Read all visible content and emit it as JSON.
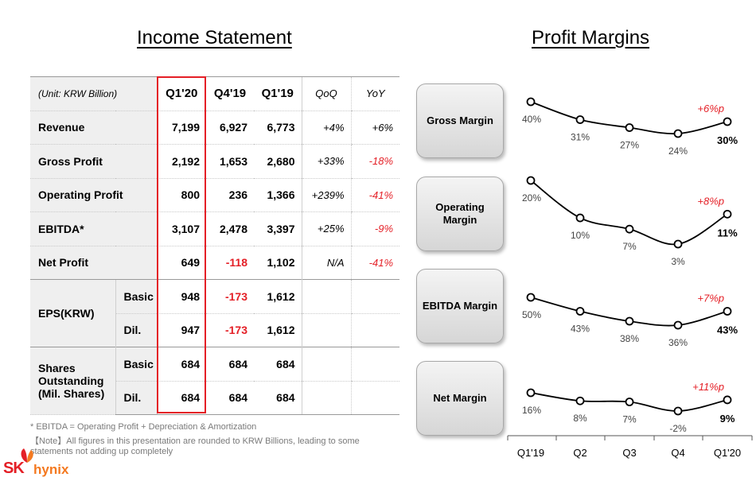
{
  "titles": {
    "income": "Income Statement",
    "margins": "Profit Margins"
  },
  "table": {
    "unit": "(Unit: KRW Billion)",
    "headers": [
      "Q1'20",
      "Q4'19",
      "Q1'19",
      "QoQ",
      "YoY"
    ],
    "rows": [
      {
        "label": "Revenue",
        "q120": "7,199",
        "q419": "6,927",
        "q119": "6,773",
        "qoq": "+4%",
        "yoy": "+6%"
      },
      {
        "label": "Gross Profit",
        "q120": "2,192",
        "q419": "1,653",
        "q119": "2,680",
        "qoq": "+33%",
        "yoy": "-18%"
      },
      {
        "label": "Operating Profit",
        "q120": "800",
        "q419": "236",
        "q119": "1,366",
        "qoq": "+239%",
        "yoy": "-41%"
      },
      {
        "label": "EBITDA*",
        "q120": "3,107",
        "q419": "2,478",
        "q119": "3,397",
        "qoq": "+25%",
        "yoy": "-9%"
      },
      {
        "label": "Net Profit",
        "q120": "649",
        "q419": "-118",
        "q119": "1,102",
        "qoq": "N/A",
        "yoy": "-41%"
      }
    ],
    "eps": {
      "label": "EPS(KRW)",
      "basic": {
        "label": "Basic",
        "q120": "948",
        "q419": "-173",
        "q119": "1,612"
      },
      "dil": {
        "label": "Dil.",
        "q120": "947",
        "q419": "-173",
        "q119": "1,612"
      }
    },
    "shares": {
      "label": "Shares Outstanding (Mil. Shares)",
      "basic": {
        "label": "Basic",
        "q120": "684",
        "q419": "684",
        "q119": "684"
      },
      "dil": {
        "label": "Dil.",
        "q120": "684",
        "q419": "684",
        "q119": "684"
      }
    }
  },
  "footnotes": {
    "ebitda": "* EBITDA = Operating Profit + Depreciation & Amortization",
    "note": "【Note】All figures in this presentation are rounded to KRW Billions, leading to some statements not adding up completely"
  },
  "logo": {
    "sk": "SK",
    "hynix": "hynix"
  },
  "colors": {
    "accent": "#e41f26",
    "negative": "#e41f26",
    "brand_orange": "#f47920"
  },
  "chart_data": {
    "type": "line",
    "categories": [
      "Q1'19",
      "Q2",
      "Q3",
      "Q4",
      "Q1'20"
    ],
    "series": [
      {
        "name": "Gross Margin",
        "values": [
          40,
          31,
          27,
          24,
          30
        ],
        "labels": [
          "40%",
          "31%",
          "27%",
          "24%",
          "30%"
        ],
        "change": "+6%p"
      },
      {
        "name": "Operating Margin",
        "values": [
          20,
          10,
          7,
          3,
          11
        ],
        "labels": [
          "20%",
          "10%",
          "7%",
          "3%",
          "11%"
        ],
        "change": "+8%p"
      },
      {
        "name": "EBITDA Margin",
        "values": [
          50,
          43,
          38,
          36,
          43
        ],
        "labels": [
          "50%",
          "43%",
          "38%",
          "36%",
          "43%"
        ],
        "change": "+7%p"
      },
      {
        "name": "Net Margin",
        "values": [
          16,
          8,
          7,
          -2,
          9
        ],
        "labels": [
          "16%",
          "8%",
          "7%",
          "-2%",
          "9%"
        ],
        "change": "+11%p"
      }
    ]
  }
}
